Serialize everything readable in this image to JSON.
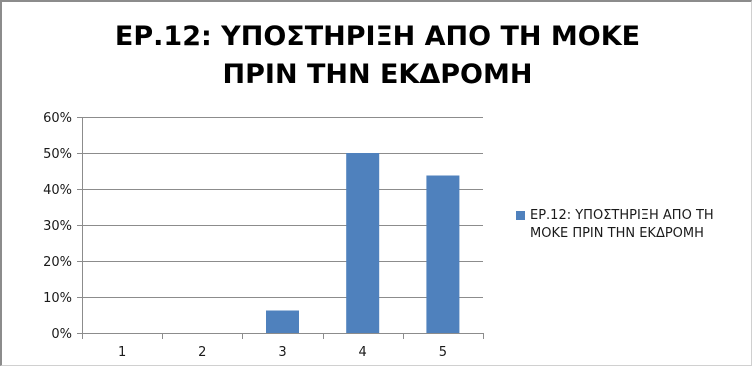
{
  "chart_data": {
    "type": "bar",
    "title": "ΕΡ.12: ΥΠΟΣΤΗΡΙΞΗ ΑΠΟ ΤΗ ΜΟΚΕ ΠΡΙΝ ΤΗΝ ΕΚΔΡΟΜΗ",
    "title_lines": [
      "ΕΡ.12: ΥΠΟΣΤΗΡΙΞΗ ΑΠΟ ΤΗ ΜΟΚΕ",
      "ΠΡΙΝ ΤΗΝ ΕΚΔΡΟΜΗ"
    ],
    "categories": [
      "1",
      "2",
      "3",
      "4",
      "5"
    ],
    "series": [
      {
        "name": "ΕΡ.12: ΥΠΟΣΤΗΡΙΞΗ ΑΠΟ ΤΗ ΜΟΚΕ ΠΡΙΝ ΤΗΝ ΕΚΔΡΟΜΗ",
        "values": [
          0,
          0,
          6.25,
          50,
          43.75
        ],
        "color": "#4f81bd"
      }
    ],
    "ylim": [
      0,
      60
    ],
    "yticks": [
      "0%",
      "10%",
      "20%",
      "30%",
      "40%",
      "50%",
      "60%"
    ],
    "grid": true,
    "legend_position": "right",
    "gridline_color": "#8c8c8c"
  }
}
